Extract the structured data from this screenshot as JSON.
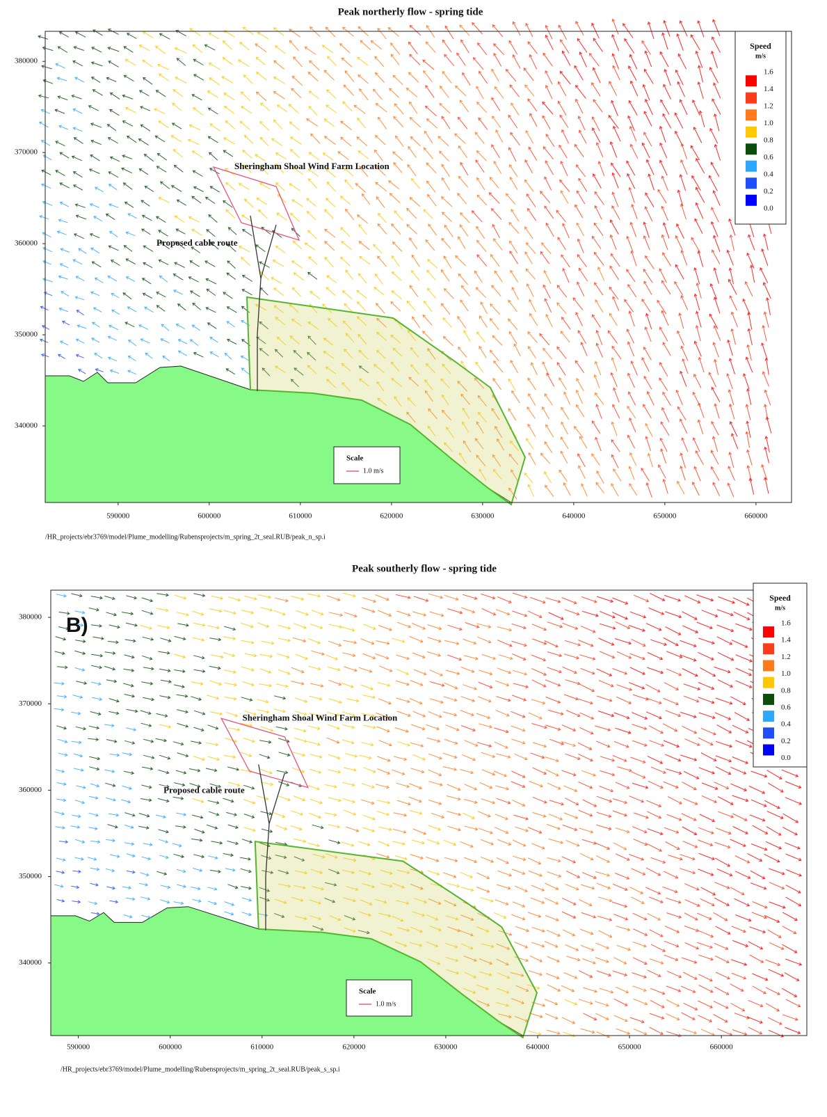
{
  "panels": [
    {
      "title": "Peak northerly flow - spring tide",
      "xlim": [
        582000,
        663900
      ],
      "ylim": [
        331600,
        383300
      ],
      "xticks": [
        590000,
        600000,
        610000,
        620000,
        630000,
        640000,
        650000,
        660000
      ],
      "yticks": [
        340000,
        350000,
        360000,
        370000,
        380000
      ],
      "legend": {
        "title": "Speed",
        "unit": "m/s",
        "labels": [
          "1.6",
          "1.4",
          "1.2",
          "1.0",
          "0.8",
          "0.6",
          "0.4",
          "0.2",
          "0.0"
        ],
        "colors": [
          "#ff0000",
          "#ff3b1a",
          "#ff7a1a",
          "#ffc800",
          "#0b4d0b",
          "#2ea8ff",
          "#1e4fff",
          "#0000ff"
        ]
      },
      "annotations": {
        "wind_farm": "Sheringham Shoal Wind Farm Location",
        "cable": "Proposed cable route"
      },
      "scale": {
        "title": "Scale",
        "label": "1.0 m/s"
      },
      "file_path": "/HR_projects/ebr3769/model/Plume_modelling/Rubensprojects/m_spring_2t_seal.RUB/peak_n_sp.i"
    },
    {
      "title": "Peak southerly flow - spring tide",
      "label": "B)",
      "xlim": [
        587000,
        669300
      ],
      "ylim": [
        331600,
        383150
      ],
      "xticks": [
        590000,
        600000,
        610000,
        620000,
        630000,
        640000,
        650000,
        660000
      ],
      "yticks": [
        340000,
        350000,
        360000,
        370000,
        380000
      ],
      "legend": {
        "title": "Speed",
        "unit": "m/s",
        "labels": [
          "1.6",
          "1.4",
          "1.2",
          "1.0",
          "0.8",
          "0.6",
          "0.4",
          "0.2",
          "0.0"
        ],
        "colors": [
          "#ff0000",
          "#ff3b1a",
          "#ff7a1a",
          "#ffc800",
          "#0b4d0b",
          "#2ea8ff",
          "#1e4fff",
          "#0000ff"
        ]
      },
      "annotations": {
        "wind_farm": "Sheringham Shoal Wind Farm Location",
        "cable": "Proposed cable route"
      },
      "scale": {
        "title": "Scale",
        "label": "1.0 m/s"
      },
      "file_path": "/HR_projects/ebr3769/model/Plume_modelling/Rubensprojects/m_spring_2t_seal.RUB/peak_s_sp.i"
    }
  ]
}
